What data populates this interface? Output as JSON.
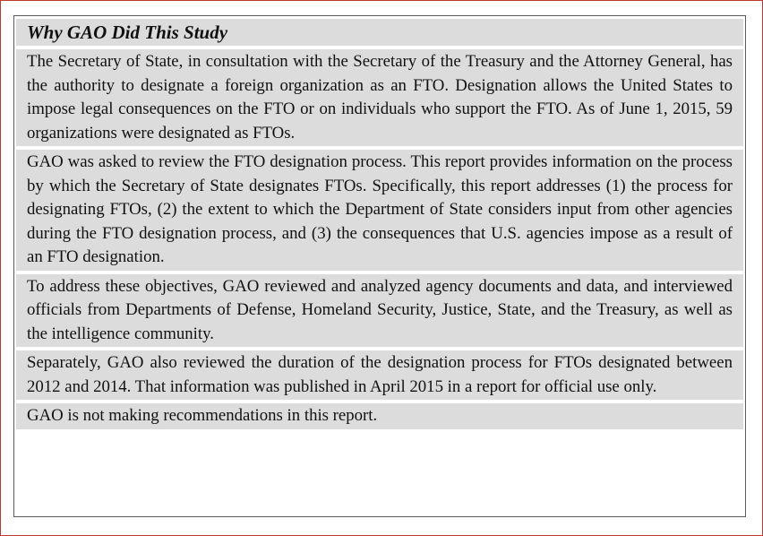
{
  "box": {
    "heading": "Why GAO Did This Study",
    "paragraphs": [
      "The Secretary of State, in consultation with the Secretary of the Treasury and the Attorney General, has the authority to designate a foreign organization as an FTO. Designation allows the United States to impose legal consequences on the FTO or on individuals who support the FTO. As of June 1, 2015, 59 organizations were designated as FTOs.",
      "GAO was asked to review the FTO designation process. This report provides information on the process by which the Secretary of State designates FTOs. Specifically, this report addresses (1) the process for designating FTOs, (2) the extent to which the Department of State considers input from other agencies during the FTO designation process, and (3) the consequences that U.S. agencies impose as a result of an FTO designation.",
      "To address these objectives, GAO reviewed and analyzed agency documents and data, and interviewed officials from Departments of Defense, Homeland Security, Justice, State, and the Treasury, as well as the intelligence community.",
      "Separately, GAO also reviewed the duration of the designation process for FTOs designated between 2012 and 2014. That information was published in April 2015 in a report for official use only.",
      "GAO is not making recommendations in this report."
    ]
  }
}
